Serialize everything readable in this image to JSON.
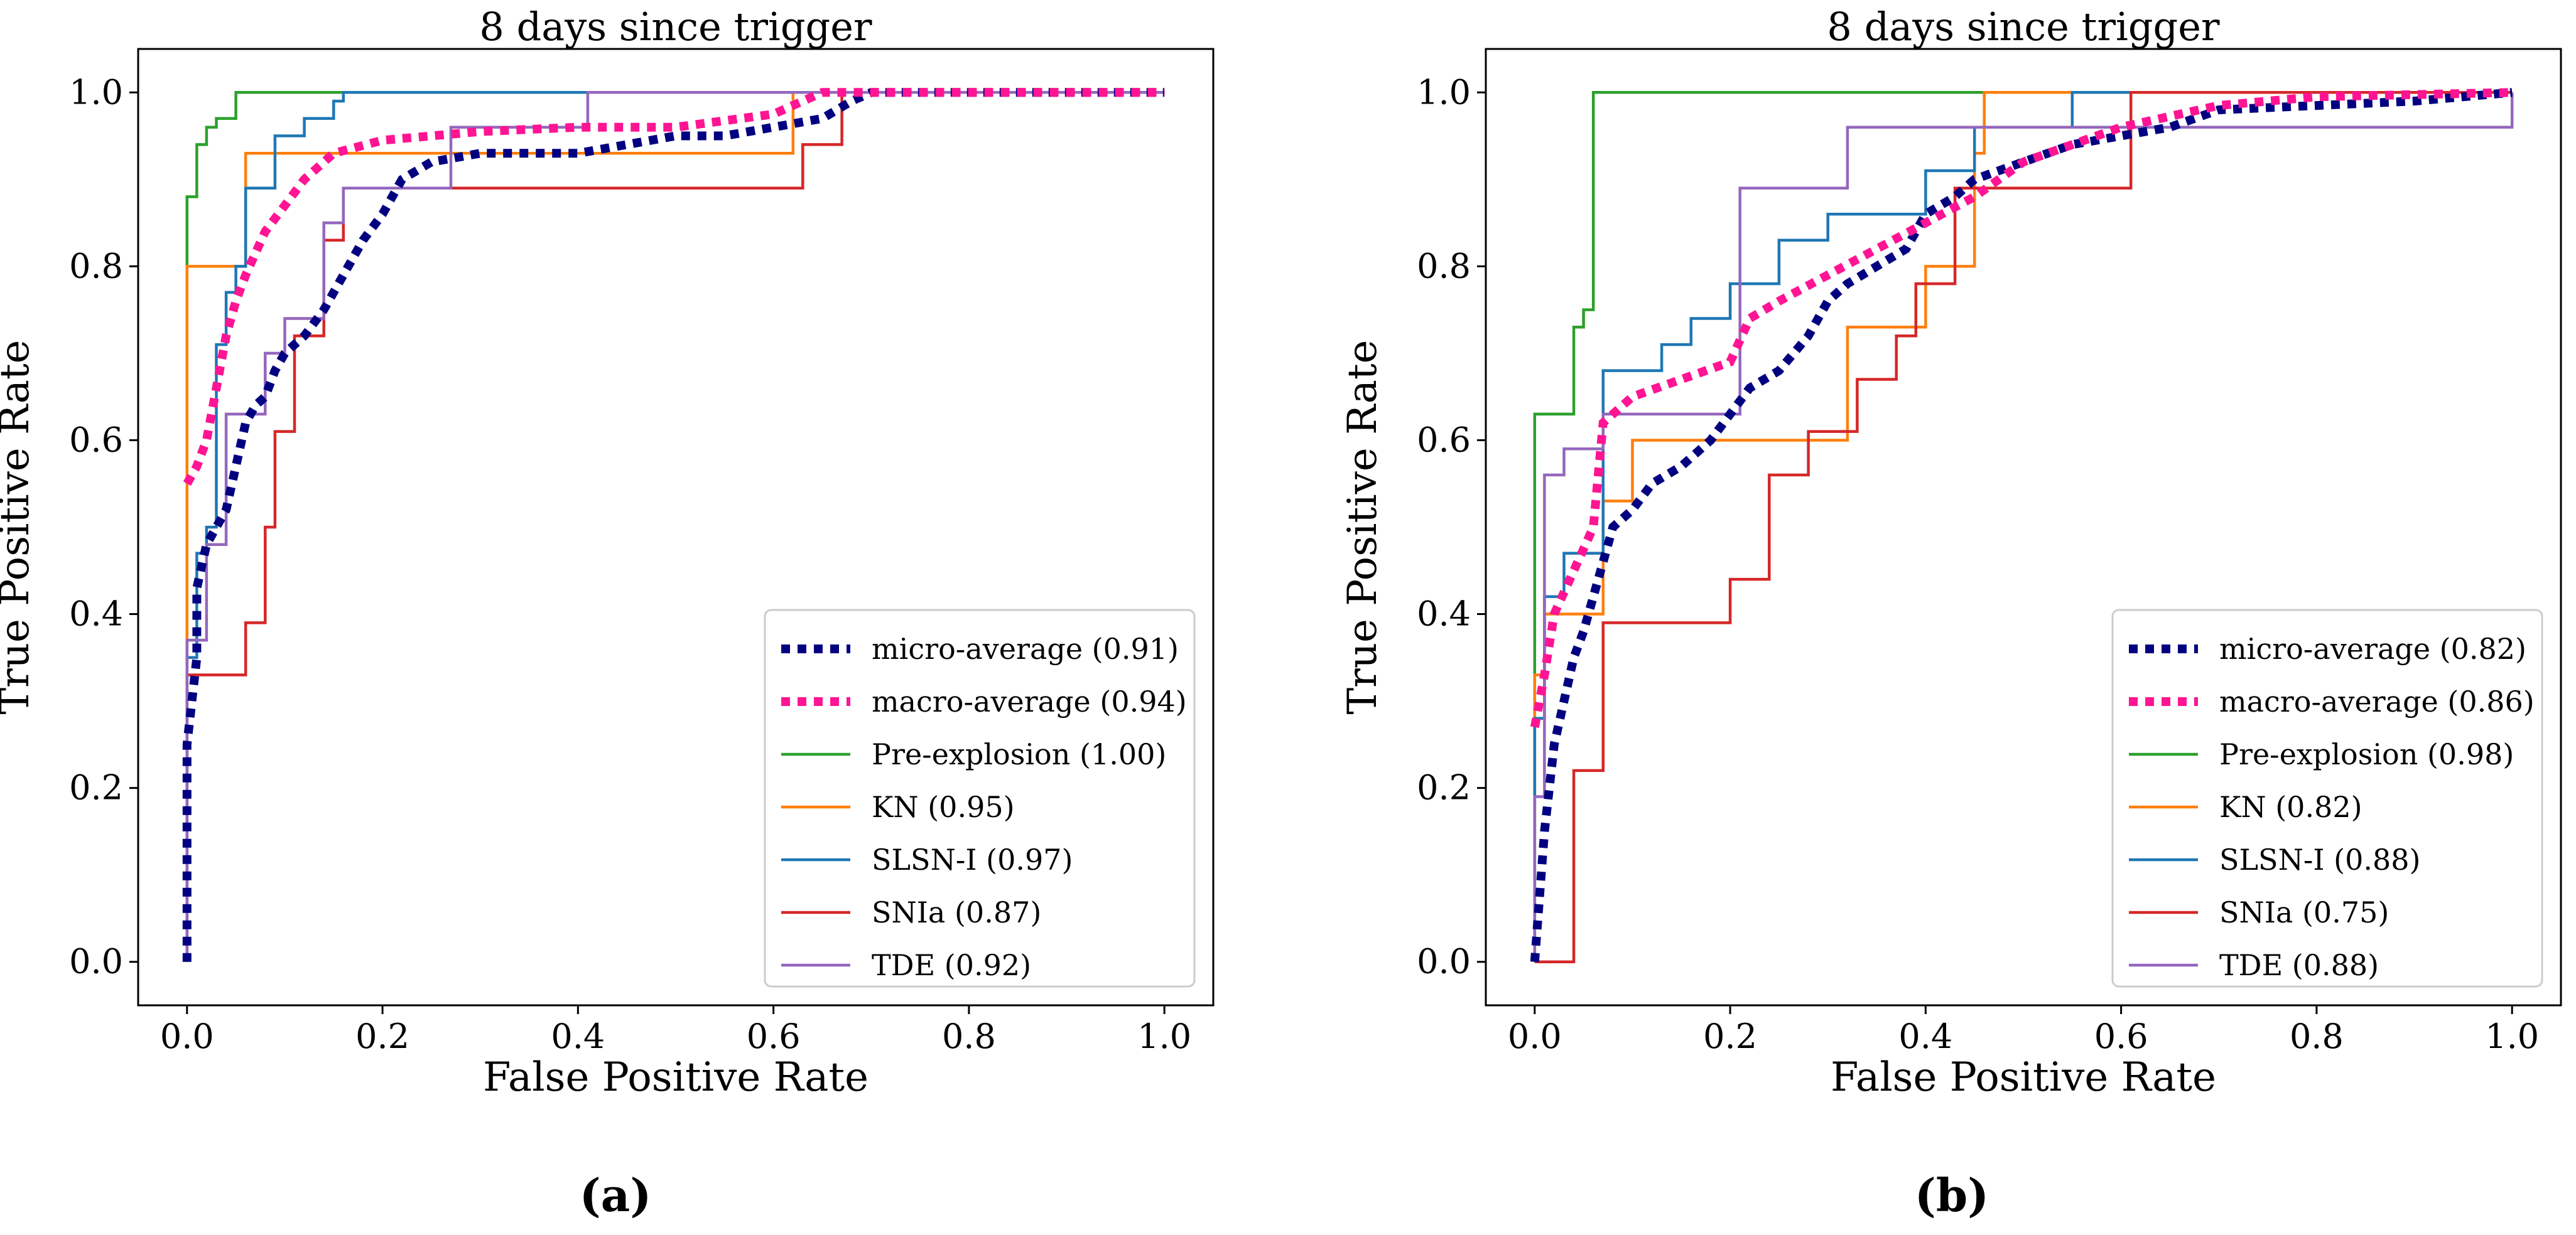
{
  "chart_data": [
    {
      "type": "line",
      "panel_label": "(a)",
      "title": "8 days since trigger",
      "xlabel": "False Positive Rate",
      "ylabel": "True Positive Rate",
      "xlim": [
        -0.05,
        1.05
      ],
      "ylim": [
        -0.05,
        1.05
      ],
      "xticks": [
        0.0,
        0.2,
        0.4,
        0.6,
        0.8,
        1.0
      ],
      "yticks": [
        0.0,
        0.2,
        0.4,
        0.6,
        0.8,
        1.0
      ],
      "xtick_labels": [
        "0.0",
        "0.2",
        "0.4",
        "0.6",
        "0.8",
        "1.0"
      ],
      "ytick_labels": [
        "0.0",
        "0.2",
        "0.4",
        "0.6",
        "0.8",
        "1.0"
      ],
      "legend_position": "lower-right",
      "series": [
        {
          "name": "micro-average (0.91)",
          "color": "#000080",
          "style": "dotted",
          "x": [
            0,
            0,
            0.01,
            0.01,
            0.02,
            0.03,
            0.04,
            0.05,
            0.06,
            0.07,
            0.08,
            0.09,
            0.1,
            0.12,
            0.14,
            0.16,
            0.18,
            0.2,
            0.22,
            0.25,
            0.3,
            0.35,
            0.4,
            0.45,
            0.5,
            0.55,
            0.6,
            0.65,
            0.68,
            0.7,
            1.0
          ],
          "y": [
            0,
            0.25,
            0.35,
            0.43,
            0.48,
            0.5,
            0.52,
            0.57,
            0.62,
            0.64,
            0.65,
            0.68,
            0.7,
            0.72,
            0.75,
            0.79,
            0.83,
            0.86,
            0.9,
            0.92,
            0.93,
            0.93,
            0.93,
            0.94,
            0.95,
            0.95,
            0.96,
            0.97,
            0.99,
            1.0,
            1.0
          ]
        },
        {
          "name": "macro-average (0.94)",
          "color": "#ff1493",
          "style": "dotted",
          "x": [
            0,
            0.01,
            0.02,
            0.03,
            0.04,
            0.05,
            0.06,
            0.08,
            0.1,
            0.12,
            0.15,
            0.2,
            0.3,
            0.4,
            0.5,
            0.6,
            0.65,
            0.7,
            1.0
          ],
          "y": [
            0.55,
            0.57,
            0.6,
            0.66,
            0.72,
            0.76,
            0.79,
            0.84,
            0.87,
            0.9,
            0.93,
            0.945,
            0.955,
            0.96,
            0.96,
            0.975,
            1.0,
            1.0,
            1.0
          ]
        },
        {
          "name": "Pre-explosion (1.00)",
          "color": "#2ca02c",
          "style": "solid",
          "x": [
            0,
            0,
            0.01,
            0.01,
            0.02,
            0.02,
            0.03,
            0.03,
            0.05,
            0.05,
            1.0
          ],
          "y": [
            0,
            0.88,
            0.88,
            0.94,
            0.94,
            0.96,
            0.96,
            0.97,
            0.97,
            1.0,
            1.0
          ]
        },
        {
          "name": "KN (0.95)",
          "color": "#ff7f0e",
          "style": "solid",
          "x": [
            0,
            0,
            0.06,
            0.06,
            0.62,
            0.62,
            1.0
          ],
          "y": [
            0,
            0.8,
            0.8,
            0.93,
            0.93,
            1.0,
            1.0
          ]
        },
        {
          "name": "SLSN-I (0.97)",
          "color": "#1f77b4",
          "style": "solid",
          "x": [
            0,
            0,
            0.01,
            0.01,
            0.02,
            0.02,
            0.03,
            0.03,
            0.04,
            0.04,
            0.05,
            0.05,
            0.06,
            0.06,
            0.09,
            0.09,
            0.12,
            0.12,
            0.15,
            0.15,
            0.16,
            0.16,
            1.0
          ],
          "y": [
            0,
            0.35,
            0.35,
            0.47,
            0.47,
            0.5,
            0.5,
            0.71,
            0.71,
            0.77,
            0.77,
            0.8,
            0.8,
            0.89,
            0.89,
            0.95,
            0.95,
            0.97,
            0.97,
            0.99,
            0.99,
            1.0,
            1.0
          ]
        },
        {
          "name": "SNIa (0.87)",
          "color": "#d62728",
          "style": "solid",
          "x": [
            0,
            0,
            0.06,
            0.06,
            0.08,
            0.08,
            0.09,
            0.09,
            0.11,
            0.11,
            0.14,
            0.14,
            0.16,
            0.16,
            0.63,
            0.63,
            0.67,
            0.67,
            1.0
          ],
          "y": [
            0,
            0.33,
            0.33,
            0.39,
            0.39,
            0.5,
            0.5,
            0.61,
            0.61,
            0.72,
            0.72,
            0.83,
            0.83,
            0.89,
            0.89,
            0.94,
            0.94,
            1.0,
            1.0
          ]
        },
        {
          "name": "TDE (0.92)",
          "color": "#9467bd",
          "style": "solid",
          "x": [
            0,
            0,
            0.02,
            0.02,
            0.04,
            0.04,
            0.08,
            0.08,
            0.1,
            0.1,
            0.14,
            0.14,
            0.16,
            0.16,
            0.27,
            0.27,
            0.41,
            0.41,
            1.0
          ],
          "y": [
            0,
            0.37,
            0.37,
            0.48,
            0.48,
            0.63,
            0.63,
            0.7,
            0.7,
            0.74,
            0.74,
            0.85,
            0.85,
            0.89,
            0.89,
            0.96,
            0.96,
            1.0,
            1.0
          ]
        }
      ]
    },
    {
      "type": "line",
      "panel_label": "(b)",
      "title": "8 days since trigger",
      "xlabel": "False Positive Rate",
      "ylabel": "True Positive Rate",
      "xlim": [
        -0.05,
        1.05
      ],
      "ylim": [
        -0.05,
        1.05
      ],
      "xticks": [
        0.0,
        0.2,
        0.4,
        0.6,
        0.8,
        1.0
      ],
      "yticks": [
        0.0,
        0.2,
        0.4,
        0.6,
        0.8,
        1.0
      ],
      "xtick_labels": [
        "0.0",
        "0.2",
        "0.4",
        "0.6",
        "0.8",
        "1.0"
      ],
      "ytick_labels": [
        "0.0",
        "0.2",
        "0.4",
        "0.6",
        "0.8",
        "1.0"
      ],
      "legend_position": "lower-right",
      "series": [
        {
          "name": "micro-average (0.82)",
          "color": "#000080",
          "style": "dotted",
          "x": [
            0,
            0.01,
            0.02,
            0.03,
            0.04,
            0.05,
            0.06,
            0.07,
            0.08,
            0.1,
            0.12,
            0.15,
            0.18,
            0.2,
            0.22,
            0.25,
            0.28,
            0.3,
            0.32,
            0.35,
            0.38,
            0.4,
            0.43,
            0.45,
            0.5,
            0.55,
            0.6,
            0.65,
            0.7,
            0.8,
            0.9,
            1.0
          ],
          "y": [
            0,
            0.15,
            0.25,
            0.3,
            0.35,
            0.38,
            0.42,
            0.46,
            0.5,
            0.52,
            0.55,
            0.57,
            0.6,
            0.63,
            0.66,
            0.68,
            0.72,
            0.76,
            0.78,
            0.8,
            0.82,
            0.86,
            0.88,
            0.9,
            0.92,
            0.94,
            0.95,
            0.96,
            0.98,
            0.985,
            0.99,
            1.0
          ]
        },
        {
          "name": "macro-average (0.86)",
          "color": "#ff1493",
          "style": "dotted",
          "x": [
            0,
            0.01,
            0.02,
            0.04,
            0.06,
            0.07,
            0.1,
            0.15,
            0.2,
            0.22,
            0.25,
            0.3,
            0.35,
            0.4,
            0.45,
            0.5,
            0.6,
            0.7,
            0.8,
            1.0
          ],
          "y": [
            0.27,
            0.33,
            0.4,
            0.45,
            0.5,
            0.62,
            0.65,
            0.67,
            0.69,
            0.74,
            0.76,
            0.79,
            0.82,
            0.85,
            0.88,
            0.92,
            0.96,
            0.985,
            0.995,
            1.0
          ]
        },
        {
          "name": "Pre-explosion (0.98)",
          "color": "#2ca02c",
          "style": "solid",
          "x": [
            0,
            0,
            0.04,
            0.04,
            0.05,
            0.05,
            0.06,
            0.06,
            1.0
          ],
          "y": [
            0,
            0.63,
            0.63,
            0.73,
            0.73,
            0.75,
            0.75,
            1.0,
            1.0
          ]
        },
        {
          "name": "KN (0.82)",
          "color": "#ff7f0e",
          "style": "solid",
          "x": [
            0,
            0,
            0.01,
            0.01,
            0.07,
            0.07,
            0.1,
            0.1,
            0.32,
            0.32,
            0.4,
            0.4,
            0.45,
            0.45,
            0.46,
            0.46,
            1.0
          ],
          "y": [
            0,
            0.33,
            0.33,
            0.4,
            0.4,
            0.53,
            0.53,
            0.6,
            0.6,
            0.73,
            0.73,
            0.8,
            0.8,
            0.93,
            0.93,
            1.0,
            1.0
          ]
        },
        {
          "name": "SLSN-I (0.88)",
          "color": "#1f77b4",
          "style": "solid",
          "x": [
            0,
            0,
            0.01,
            0.01,
            0.03,
            0.03,
            0.07,
            0.07,
            0.13,
            0.13,
            0.16,
            0.16,
            0.2,
            0.2,
            0.25,
            0.25,
            0.3,
            0.3,
            0.4,
            0.4,
            0.45,
            0.45,
            0.55,
            0.55,
            1.0
          ],
          "y": [
            0,
            0.28,
            0.28,
            0.42,
            0.42,
            0.47,
            0.47,
            0.68,
            0.68,
            0.71,
            0.71,
            0.74,
            0.74,
            0.78,
            0.78,
            0.83,
            0.83,
            0.86,
            0.86,
            0.91,
            0.91,
            0.96,
            0.96,
            1.0,
            1.0
          ]
        },
        {
          "name": "SNIa (0.75)",
          "color": "#d62728",
          "style": "solid",
          "x": [
            0,
            0.04,
            0.04,
            0.07,
            0.07,
            0.2,
            0.2,
            0.24,
            0.24,
            0.28,
            0.28,
            0.33,
            0.33,
            0.37,
            0.37,
            0.39,
            0.39,
            0.43,
            0.43,
            0.61,
            0.61,
            1.0
          ],
          "y": [
            0,
            0,
            0.22,
            0.22,
            0.39,
            0.39,
            0.44,
            0.44,
            0.56,
            0.56,
            0.61,
            0.61,
            0.67,
            0.67,
            0.72,
            0.72,
            0.78,
            0.78,
            0.89,
            0.89,
            1.0,
            1.0
          ]
        },
        {
          "name": "TDE (0.88)",
          "color": "#9467bd",
          "style": "solid",
          "x": [
            0,
            0,
            0.01,
            0.01,
            0.03,
            0.03,
            0.07,
            0.07,
            0.21,
            0.21,
            0.32,
            0.32,
            1.0,
            1.0
          ],
          "y": [
            0,
            0.19,
            0.19,
            0.56,
            0.56,
            0.59,
            0.59,
            0.63,
            0.63,
            0.89,
            0.89,
            0.96,
            0.96,
            1.0
          ]
        }
      ]
    }
  ]
}
